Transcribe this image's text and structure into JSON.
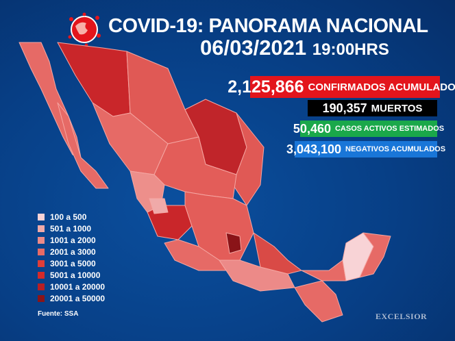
{
  "header": {
    "title": "COVID-19: PANORAMA NACIONAL",
    "date": "06/03/2021",
    "time": "19:00HRS",
    "icon": "coronavirus-globe-icon"
  },
  "stats": [
    {
      "value": "2,125,866",
      "label": "CONFIRMADOS ACUMULADOS",
      "color": "#e3151c"
    },
    {
      "value": "190,357",
      "label": "MUERTOS",
      "color": "#000000"
    },
    {
      "value": "50,460",
      "label": "CASOS ACTIVOS ESTIMADOS",
      "color": "#1aa84a"
    },
    {
      "value": "3,043,100",
      "label": "NEGATIVOS ACUMULADOS",
      "color": "#1976d8"
    }
  ],
  "legend": [
    {
      "label": "100 a 500",
      "color": "#f8d3d6"
    },
    {
      "label": "501 a 1000",
      "color": "#f0aaa9"
    },
    {
      "label": "1001 a 2000",
      "color": "#ec8a88"
    },
    {
      "label": "2001 a 3000",
      "color": "#e66a66"
    },
    {
      "label": "3001 a 5000",
      "color": "#df3d38"
    },
    {
      "label": "5001 a 10000",
      "color": "#d42a2a"
    },
    {
      "label": "10001 a 20000",
      "color": "#b81f24"
    },
    {
      "label": "20001 a 50000",
      "color": "#8a1418"
    }
  ],
  "source": "Fuente: SSA",
  "logo": "EXCELSIOR"
}
